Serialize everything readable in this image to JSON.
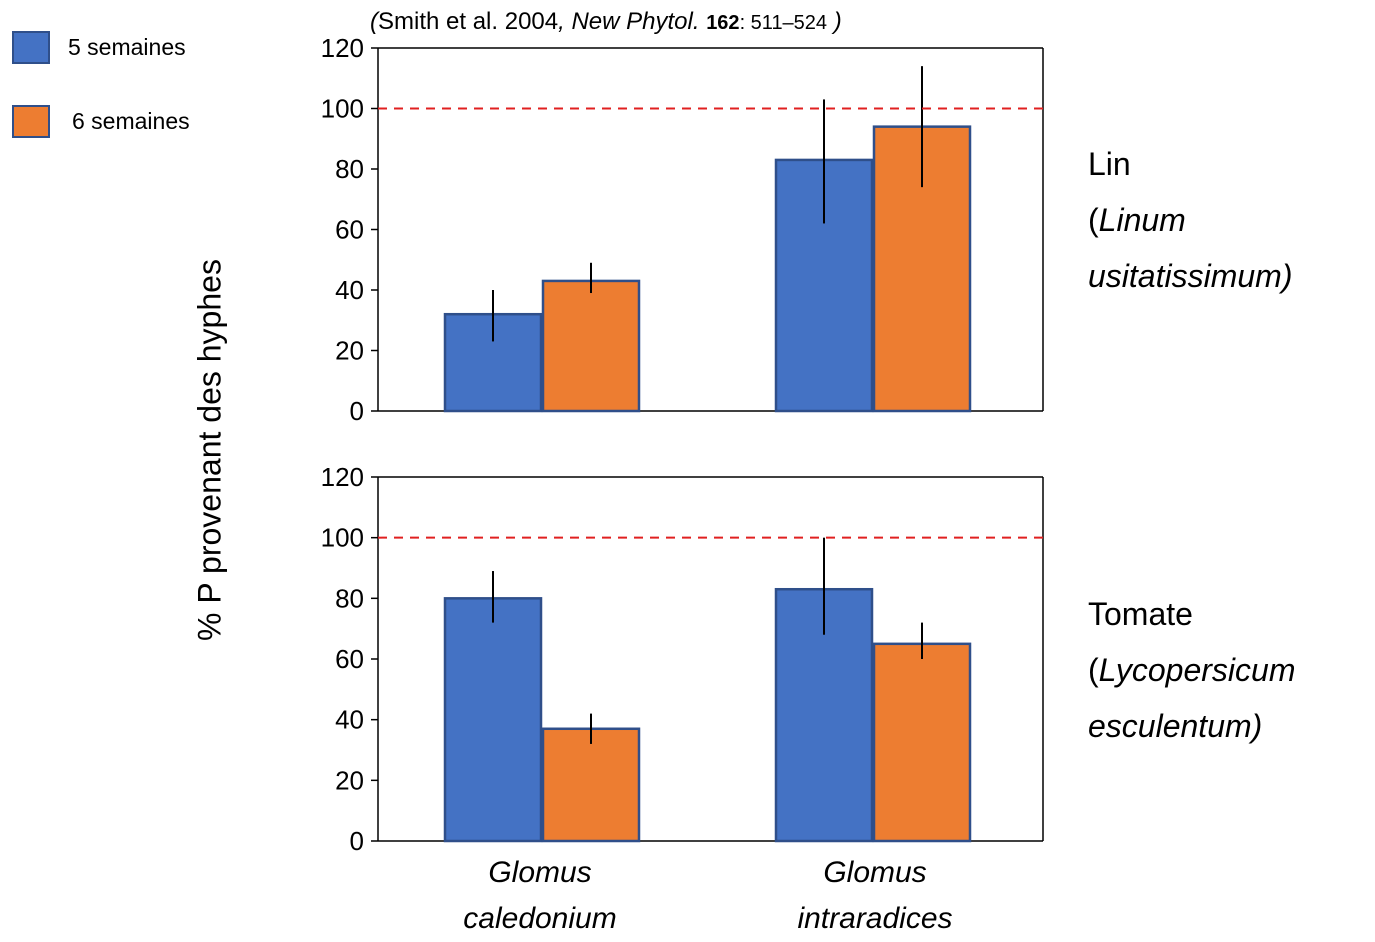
{
  "citation": {
    "open_paren": "(",
    "authors": "Smith et al. 2004",
    "comma": ",",
    "journal": "New Phytol.",
    "volume": "162",
    "pages": ": 511–524",
    "close_paren": ")"
  },
  "legend": {
    "items": [
      {
        "label": "5 semaines",
        "color": "#4472c4"
      },
      {
        "label": "6 semaines",
        "color": "#ed7d31"
      }
    ]
  },
  "ylabel": "% P provenant des hyphes",
  "panels": [
    {
      "common": "Lin",
      "open_paren": "(",
      "latin1": "Linum",
      "latin2": "usitatissimum)"
    },
    {
      "common": "Tomate",
      "open_paren": "(",
      "latin1": "Lycopersicum",
      "latin2": "esculentum)"
    }
  ],
  "xcategories": [
    {
      "line1": "Glomus",
      "line2": "caledonium"
    },
    {
      "line1": "Glomus",
      "line2": "intraradices"
    }
  ],
  "chart_data": [
    {
      "type": "bar",
      "categories": [
        "Glomus caledonium",
        "Glomus intraradices"
      ],
      "series": [
        {
          "name": "5 semaines",
          "values": [
            32,
            83
          ],
          "error_low": [
            23,
            62
          ],
          "error_high": [
            40,
            103
          ]
        },
        {
          "name": "6 semaines",
          "values": [
            43,
            94
          ],
          "error_low": [
            39,
            74
          ],
          "error_high": [
            49,
            114
          ]
        }
      ],
      "ylim": [
        0,
        120
      ],
      "yticks": [
        0,
        20,
        40,
        60,
        80,
        100,
        120
      ],
      "reference_line": 100,
      "reference_line_color": "#e02020",
      "panel_label": "Lin (Linum usitatissimum)"
    },
    {
      "type": "bar",
      "categories": [
        "Glomus caledonium",
        "Glomus intraradices"
      ],
      "series": [
        {
          "name": "5 semaines",
          "values": [
            80,
            83
          ],
          "error_low": [
            72,
            68
          ],
          "error_high": [
            89,
            100
          ]
        },
        {
          "name": "6 semaines",
          "values": [
            37,
            65
          ],
          "error_low": [
            32,
            60
          ],
          "error_high": [
            42,
            72
          ]
        }
      ],
      "ylim": [
        0,
        120
      ],
      "yticks": [
        0,
        20,
        40,
        60,
        80,
        100,
        120
      ],
      "reference_line": 100,
      "reference_line_color": "#e02020",
      "panel_label": "Tomate (Lycopersicum esculentum)"
    }
  ]
}
